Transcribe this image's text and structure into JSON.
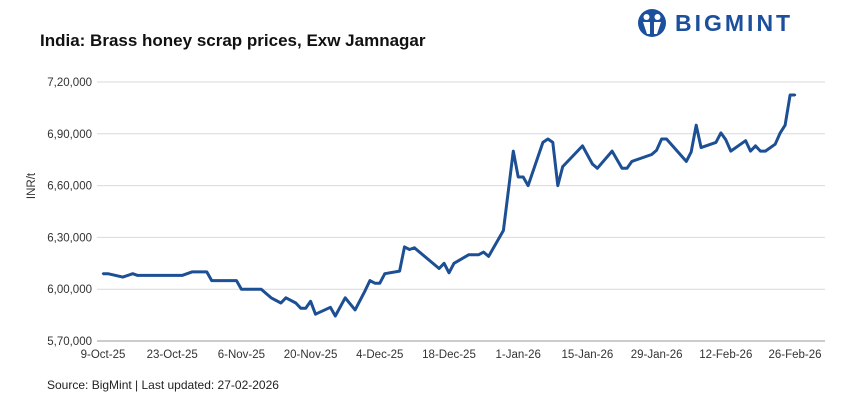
{
  "logo": {
    "text": "BIGMINT",
    "color": "#1c4f9c"
  },
  "footer": {
    "source": "Source: BigMint | Last updated: 27-02-2026"
  },
  "chart_data": {
    "type": "line",
    "title": "India: Brass honey scrap prices, Exw Jamnagar",
    "xlabel": "",
    "ylabel": "INR/t",
    "ylim": [
      570000,
      720000
    ],
    "yticks": [
      570000,
      600000,
      630000,
      660000,
      690000,
      720000
    ],
    "ytick_labels": [
      "5,70,000",
      "6,00,000",
      "6,30,000",
      "6,60,000",
      "6,90,000",
      "7,20,000"
    ],
    "xticks": [
      "2025-10-09",
      "2025-10-23",
      "2025-11-06",
      "2025-11-20",
      "2025-12-04",
      "2025-12-18",
      "2026-01-01",
      "2026-01-15",
      "2026-01-29",
      "2026-02-12",
      "2026-02-26"
    ],
    "xtick_labels": [
      "9-Oct-25",
      "23-Oct-25",
      "6-Nov-25",
      "20-Nov-25",
      "4-Dec-25",
      "18-Dec-25",
      "1-Jan-26",
      "15-Jan-26",
      "29-Jan-26",
      "12-Feb-26",
      "26-Feb-26"
    ],
    "grid": true,
    "line_color": "#1c4f94",
    "series": [
      {
        "name": "Brass honey scrap",
        "points": [
          [
            "2025-10-09",
            609000
          ],
          [
            "2025-10-10",
            609000
          ],
          [
            "2025-10-13",
            607000
          ],
          [
            "2025-10-15",
            609000
          ],
          [
            "2025-10-16",
            608000
          ],
          [
            "2025-10-25",
            608000
          ],
          [
            "2025-10-27",
            610000
          ],
          [
            "2025-10-30",
            610000
          ],
          [
            "2025-10-31",
            605000
          ],
          [
            "2025-11-05",
            605000
          ],
          [
            "2025-11-06",
            600000
          ],
          [
            "2025-11-10",
            600000
          ],
          [
            "2025-11-12",
            595000
          ],
          [
            "2025-11-14",
            592000
          ],
          [
            "2025-11-15",
            595000
          ],
          [
            "2025-11-17",
            592000
          ],
          [
            "2025-11-18",
            589000
          ],
          [
            "2025-11-19",
            589000
          ],
          [
            "2025-11-20",
            593000
          ],
          [
            "2025-11-21",
            585500
          ],
          [
            "2025-11-24",
            589500
          ],
          [
            "2025-11-25",
            584500
          ],
          [
            "2025-11-27",
            595000
          ],
          [
            "2025-11-29",
            588000
          ],
          [
            "2025-12-01",
            599000
          ],
          [
            "2025-12-02",
            605000
          ],
          [
            "2025-12-03",
            603500
          ],
          [
            "2025-12-04",
            603500
          ],
          [
            "2025-12-05",
            609000
          ],
          [
            "2025-12-08",
            610500
          ],
          [
            "2025-12-09",
            624500
          ],
          [
            "2025-12-10",
            623000
          ],
          [
            "2025-12-11",
            624000
          ],
          [
            "2025-12-16",
            612000
          ],
          [
            "2025-12-17",
            615000
          ],
          [
            "2025-12-18",
            609500
          ],
          [
            "2025-12-19",
            615000
          ],
          [
            "2025-12-22",
            620000
          ],
          [
            "2025-12-24",
            620000
          ],
          [
            "2025-12-25",
            621500
          ],
          [
            "2025-12-26",
            619000
          ],
          [
            "2025-12-29",
            634000
          ],
          [
            "2025-12-31",
            680000
          ],
          [
            "2026-01-01",
            665000
          ],
          [
            "2026-01-02",
            665000
          ],
          [
            "2026-01-03",
            660000
          ],
          [
            "2026-01-06",
            685000
          ],
          [
            "2026-01-07",
            687000
          ],
          [
            "2026-01-08",
            685000
          ],
          [
            "2026-01-09",
            660000
          ],
          [
            "2026-01-10",
            671000
          ],
          [
            "2026-01-14",
            683000
          ],
          [
            "2026-01-16",
            672500
          ],
          [
            "2026-01-17",
            670000
          ],
          [
            "2026-01-20",
            680000
          ],
          [
            "2026-01-22",
            670000
          ],
          [
            "2026-01-23",
            670000
          ],
          [
            "2026-01-24",
            674000
          ],
          [
            "2026-01-28",
            678000
          ],
          [
            "2026-01-29",
            680500
          ],
          [
            "2026-01-30",
            687000
          ],
          [
            "2026-01-31",
            687000
          ],
          [
            "2026-02-04",
            674000
          ],
          [
            "2026-02-05",
            679500
          ],
          [
            "2026-02-06",
            695000
          ],
          [
            "2026-02-07",
            682000
          ],
          [
            "2026-02-10",
            685000
          ],
          [
            "2026-02-11",
            690500
          ],
          [
            "2026-02-12",
            686500
          ],
          [
            "2026-02-13",
            680000
          ],
          [
            "2026-02-16",
            686000
          ],
          [
            "2026-02-17",
            680000
          ],
          [
            "2026-02-18",
            683000
          ],
          [
            "2026-02-19",
            680000
          ],
          [
            "2026-02-20",
            680000
          ],
          [
            "2026-02-22",
            684000
          ],
          [
            "2026-02-23",
            690500
          ],
          [
            "2026-02-24",
            695000
          ],
          [
            "2026-02-25",
            712500
          ],
          [
            "2026-02-26",
            712500
          ]
        ]
      }
    ]
  }
}
